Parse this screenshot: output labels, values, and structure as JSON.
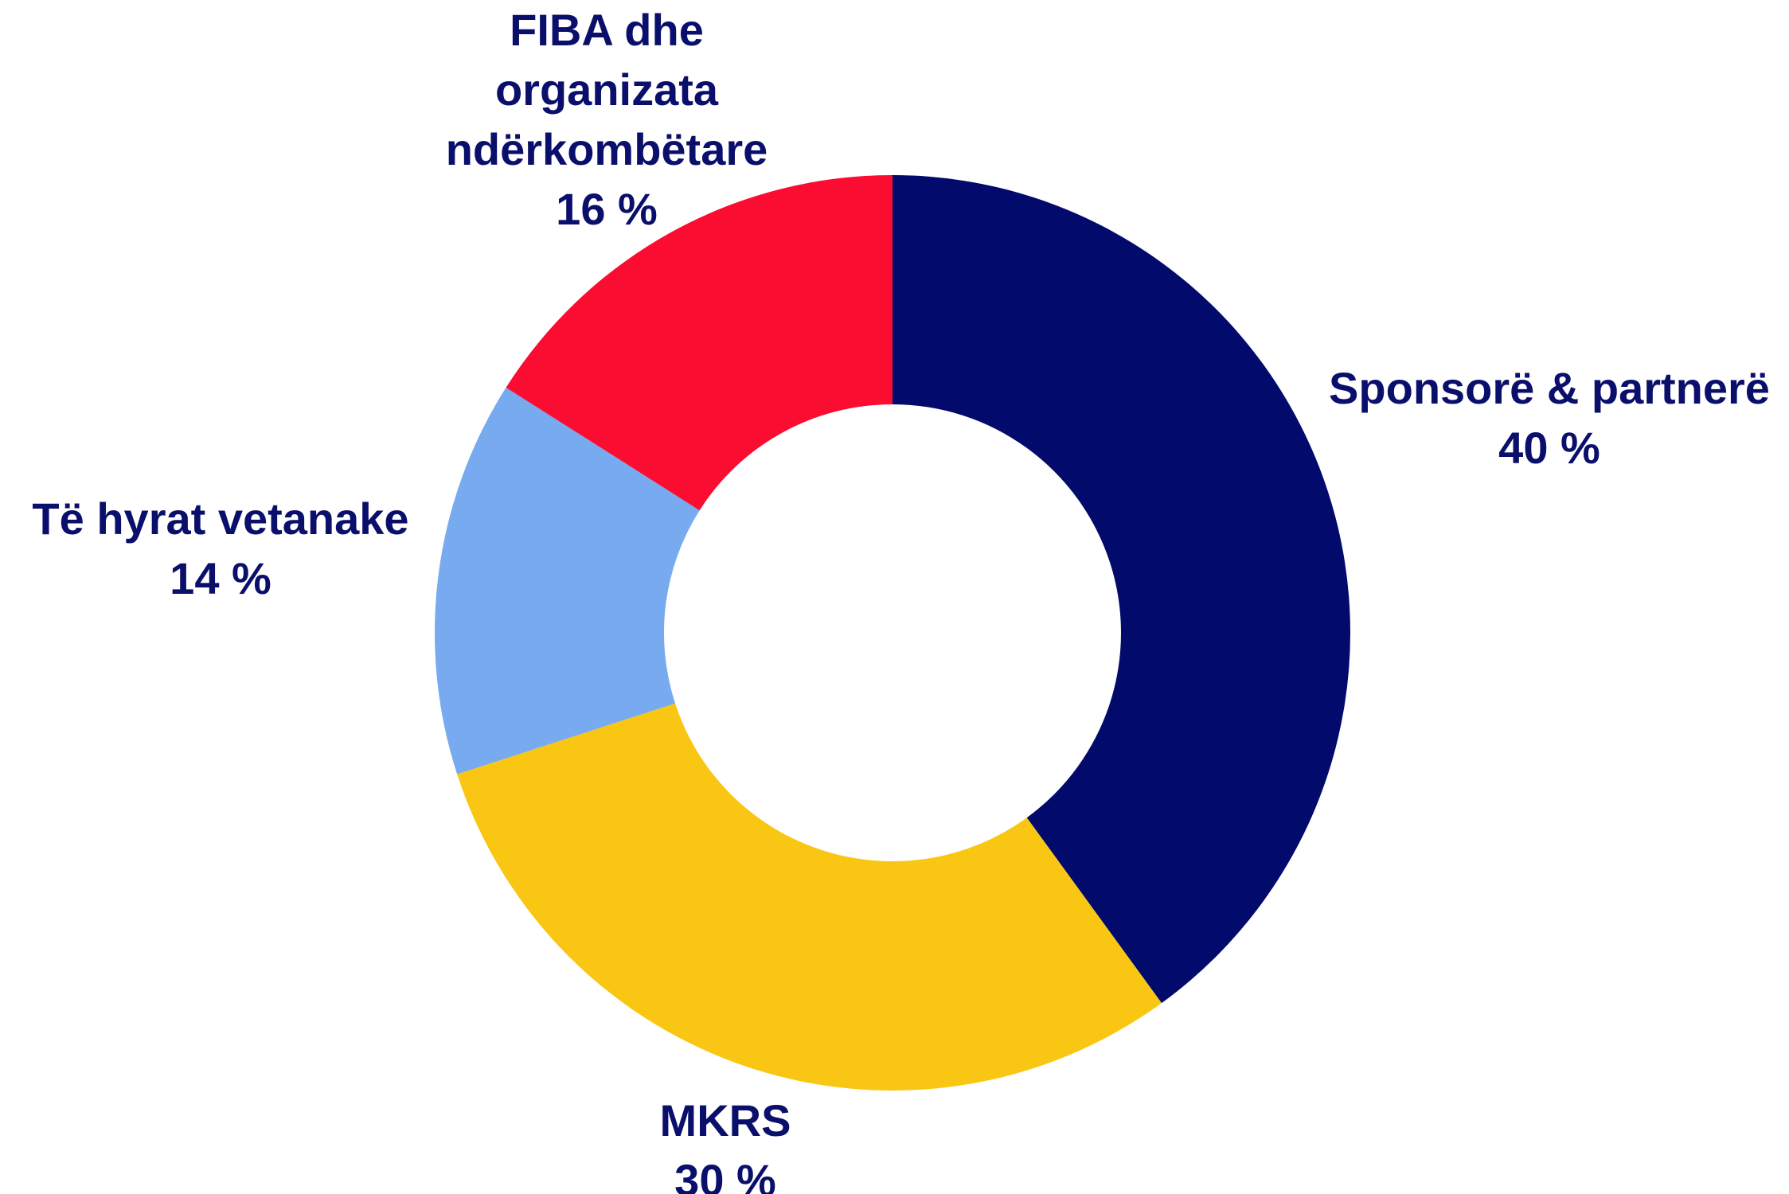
{
  "chart_data": {
    "type": "donut",
    "categories": [
      "Sponsorë & partnerë",
      "MKRS",
      "Të hyrat vetanake",
      "FIBA dhe organizata ndërkombëtare"
    ],
    "values": [
      40,
      30,
      14,
      16
    ],
    "value_labels": [
      "40 %",
      "30 %",
      "14 %",
      "16 %"
    ],
    "colors": [
      "#020a6b",
      "#f9c713",
      "#78aaf0",
      "#fb0d32"
    ]
  }
}
